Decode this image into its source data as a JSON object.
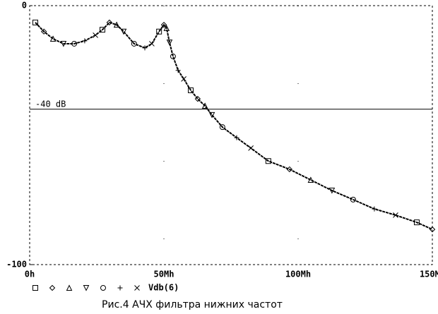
{
  "chart_data": {
    "type": "line",
    "title": "Рис.4 АЧХ фильтра нижних частот",
    "annotation": "-40  dB",
    "reference_line": -40,
    "x": [
      2.1,
      5.3,
      8.7,
      12.6,
      16.6,
      20.5,
      24.5,
      27.1,
      29.7,
      32.4,
      35,
      38.9,
      42.9,
      45.5,
      48.2,
      50,
      51,
      52.1,
      53.4,
      55.3,
      57.4,
      60,
      62.6,
      65.3,
      67.9,
      71.8,
      77.1,
      82.4,
      88.9,
      96.8,
      104.7,
      112.6,
      120.5,
      128.4,
      136.3,
      144.2,
      150
    ],
    "series": [
      {
        "name": "Vdb(6)",
        "color": "#000000",
        "values": [
          -6.5,
          -10,
          -12.8,
          -14.7,
          -14.7,
          -13.6,
          -11.4,
          -9.3,
          -6.5,
          -7.4,
          -10,
          -14.7,
          -16.3,
          -14.7,
          -10,
          -7.4,
          -8.7,
          -14.2,
          -19.6,
          -25,
          -28.3,
          -32.7,
          -36,
          -38.7,
          -42.2,
          -46.9,
          -51,
          -55,
          -60,
          -63.2,
          -67.3,
          -71.4,
          -74.9,
          -78.5,
          -80.9,
          -83.7,
          -86.4
        ]
      }
    ],
    "xlim": [
      0,
      150
    ],
    "xticks": [
      {
        "value": 0,
        "label": "0h"
      },
      {
        "value": 50,
        "label": "50Mh"
      },
      {
        "value": 100,
        "label": "100Mh"
      },
      {
        "value": 150,
        "label": "150Mh"
      }
    ],
    "ylim": [
      -100,
      0
    ],
    "yticks": [
      -100,
      0
    ],
    "grid": true
  }
}
